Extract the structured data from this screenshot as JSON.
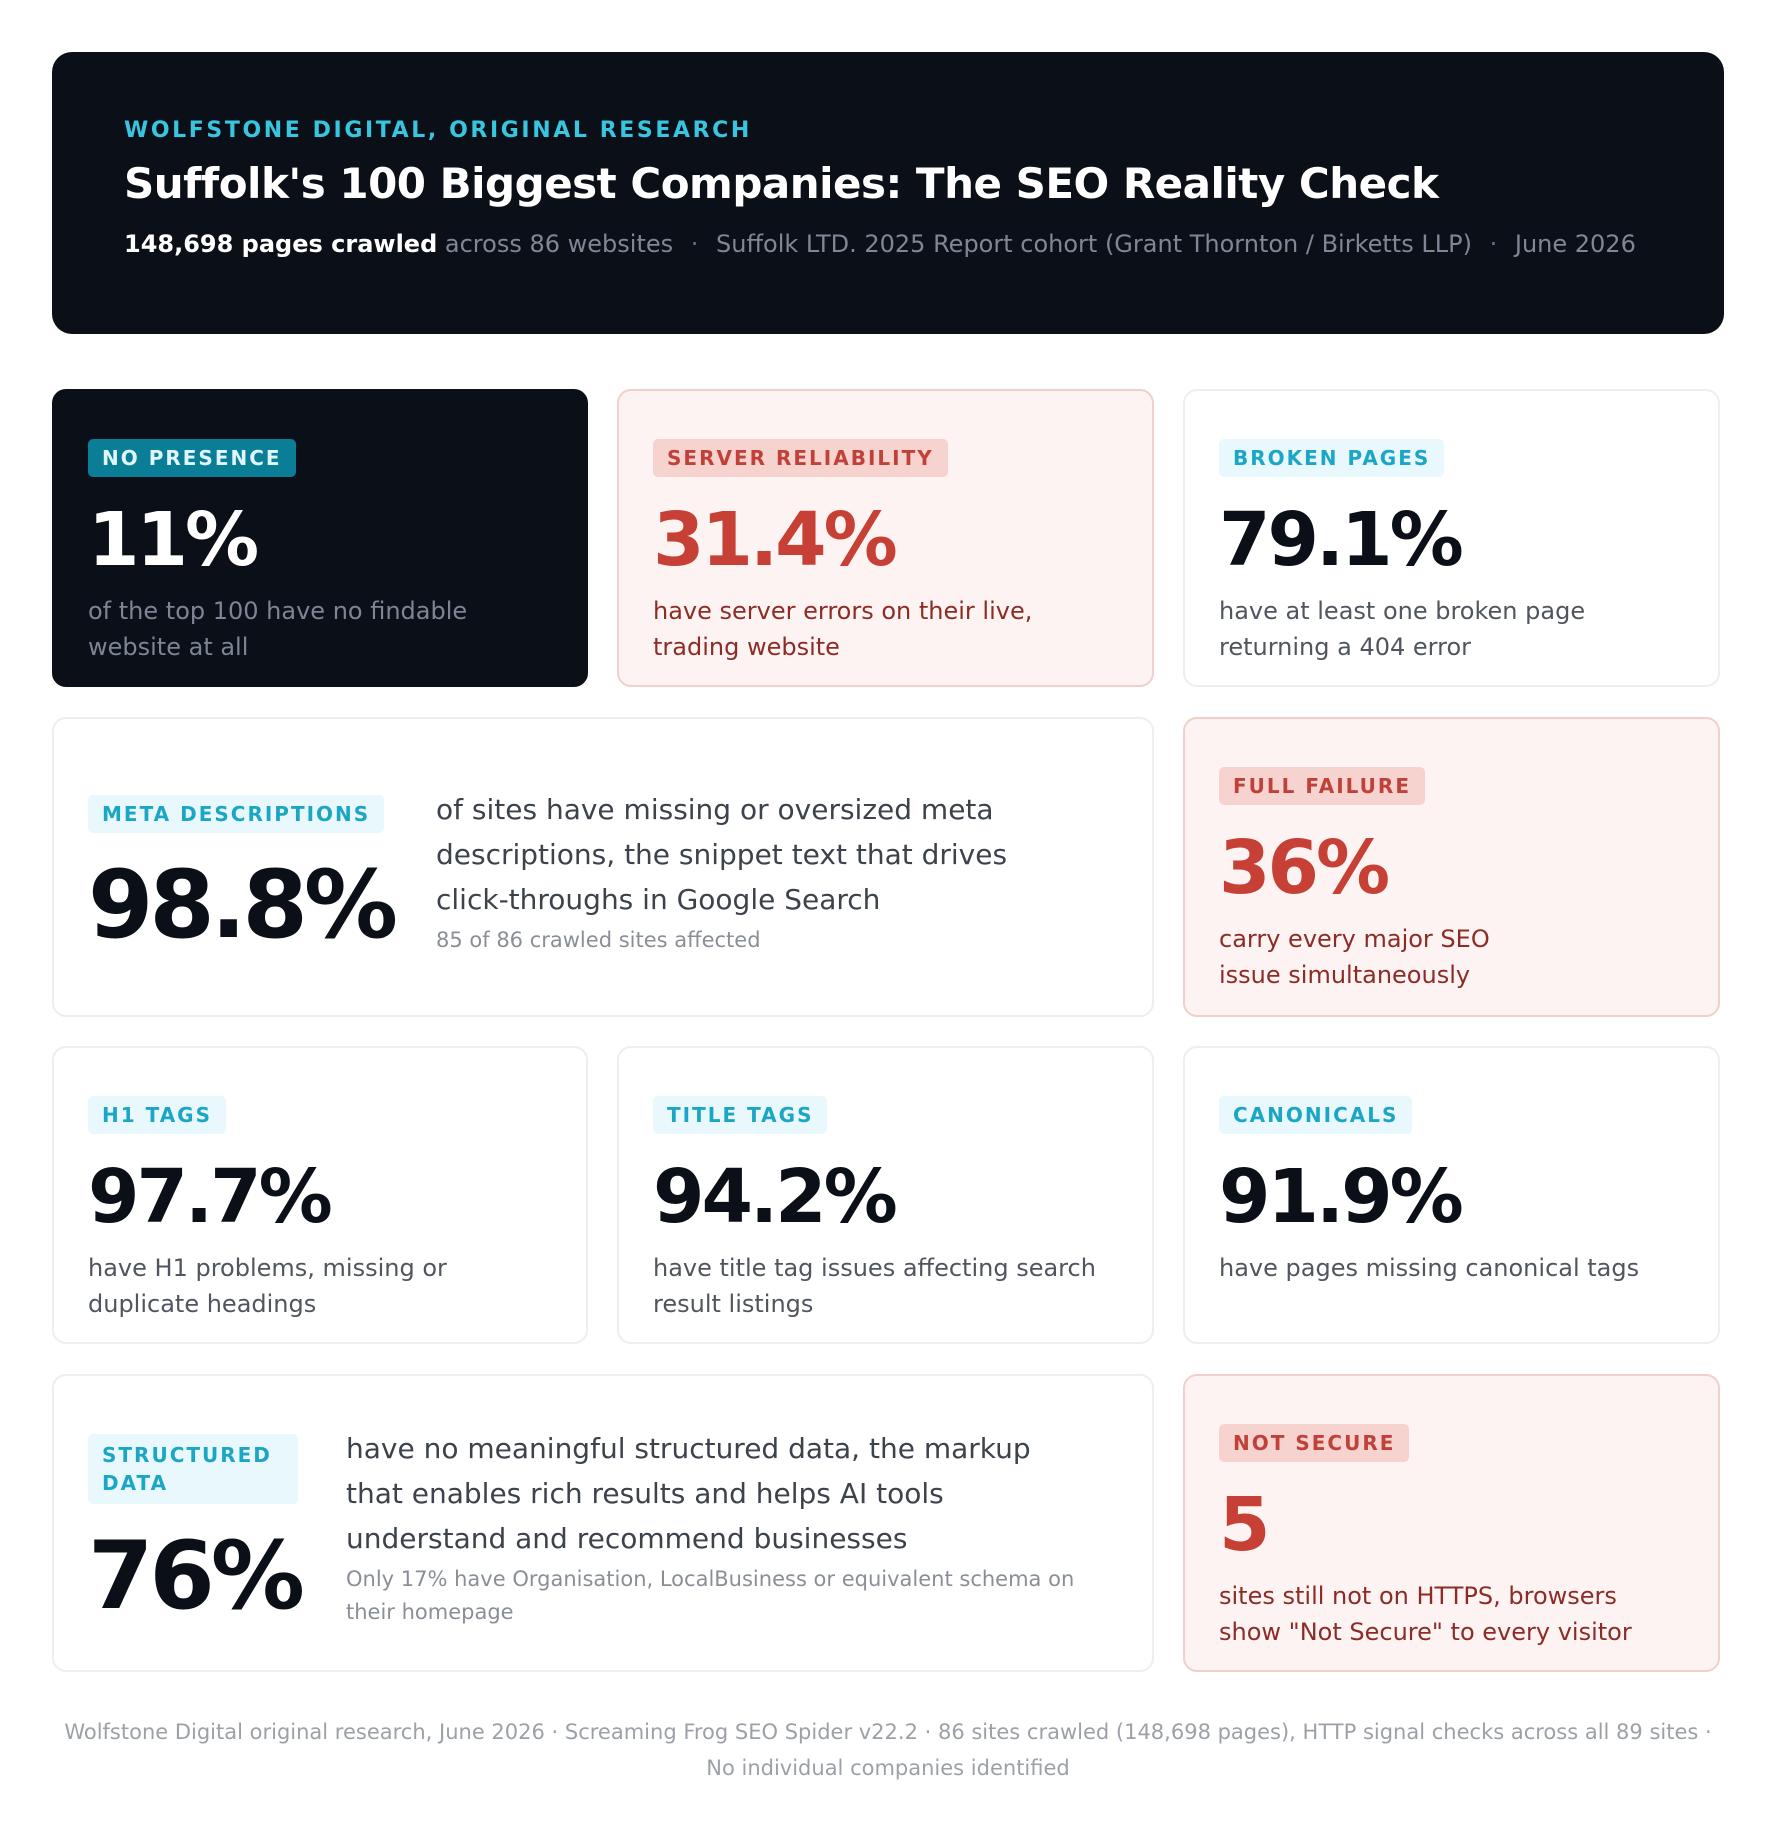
{
  "header": {
    "eyebrow": "WOLFSTONE DIGITAL, ORIGINAL RESEARCH",
    "title": "Suffolk's 100 Biggest Companies: The SEO Reality Check",
    "pages_crawled": "148,698 pages crawled",
    "websites": "across 86 websites",
    "cohort": "Suffolk LTD. 2025 Report cohort (Grant Thornton / Birketts LLP)",
    "date": "June 2026",
    "separator": "·"
  },
  "cards": {
    "no_presence": {
      "badge": "NO PRESENCE",
      "value": "11%",
      "text": "of the top 100 have no findable website at all"
    },
    "server": {
      "badge": "SERVER RELIABILITY",
      "value": "31.4%",
      "text": "have server errors on their live, trading website"
    },
    "broken": {
      "badge": "BROKEN PAGES",
      "value": "79.1%",
      "text": "have at least one broken page returning a 404 error"
    },
    "meta": {
      "badge": "META DESCRIPTIONS",
      "value": "98.8%",
      "text": "of sites have missing or oversized meta descriptions, the snippet text that drives click-throughs in Google Search",
      "note": "85 of 86 crawled sites affected"
    },
    "failure": {
      "badge": "FULL FAILURE",
      "value": "36%",
      "text": "carry every major SEO issue simultaneously"
    },
    "h1": {
      "badge": "H1 TAGS",
      "value": "97.7%",
      "text": "have H1 problems, missing or duplicate headings"
    },
    "title_tags": {
      "badge": "TITLE TAGS",
      "value": "94.2%",
      "text": "have title tag issues affecting search result listings"
    },
    "canonicals": {
      "badge": "CANONICALS",
      "value": "91.9%",
      "text": "have pages missing canonical tags"
    },
    "structured": {
      "badge": "STRUCTURED DATA",
      "value": "76%",
      "text": "have no meaningful structured data, the markup that enables rich results and helps AI tools understand and recommend businesses",
      "note": "Only 17% have Organisation, LocalBusiness or equivalent schema on their homepage"
    },
    "not_secure": {
      "badge": "NOT SECURE",
      "value": "5",
      "text": "sites still not on HTTPS, browsers show \"Not Secure\" to every visitor"
    }
  },
  "footer": {
    "line": "Wolfstone Digital original research, June 2026  ·  Screaming Frog SEO Spider v22.2  ·  86 sites crawled (148,698 pages), HTTP signal checks across all 89 sites  ·  No individual companies identified"
  },
  "colors": {
    "dark_bg": "#0b0f17",
    "teal_accent": "#38c5e0",
    "red_accent": "#c64036",
    "warn_bg": "#fdf3f2"
  }
}
